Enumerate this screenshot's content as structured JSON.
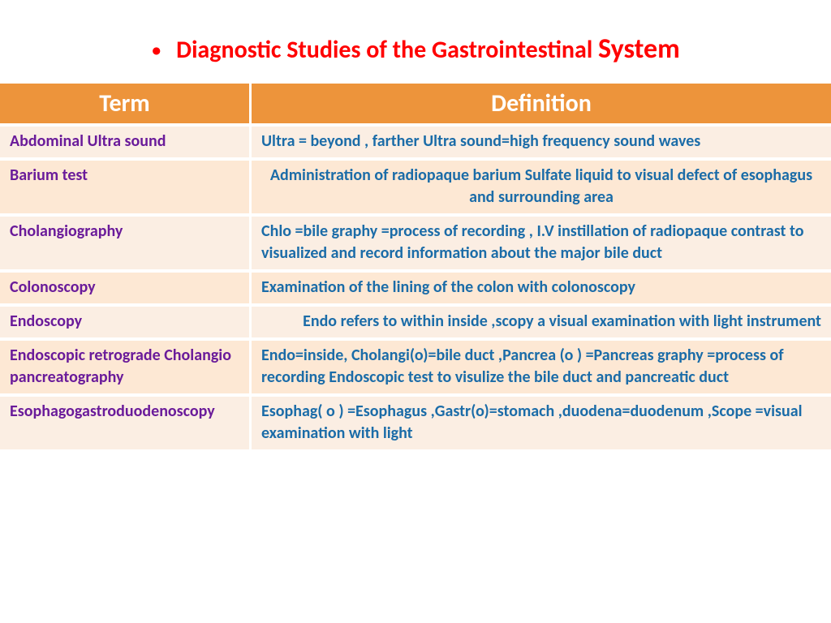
{
  "title_prefix": "Diagnostic Studies of the Gastrointestinal ",
  "title_big": "System",
  "headers": {
    "term": "Term",
    "definition": "Definition"
  },
  "rows": [
    {
      "term": "Abdominal Ultra sound",
      "def": "Ultra = beyond  , farther      Ultra sound=high frequency sound waves",
      "align": "left",
      "band": "odd"
    },
    {
      "term": "Barium test",
      "def": "Administration of  radiopaque barium  Sulfate liquid to visual defect of esophagus  and surrounding area",
      "align": "center",
      "band": "even"
    },
    {
      "term": "Cholangiography",
      "def": "Chlo =bile   graphy =process of recording   , I.V  instillation of radiopaque   contrast   to visualized  and record information about the major bile duct",
      "align": "left",
      "band": "odd"
    },
    {
      "term": "Colonoscopy",
      "def": "Examination of the  lining of the colon with colonoscopy",
      "align": "left",
      "band": "even"
    },
    {
      "term": "Endoscopy",
      "def": "Endo refers to within inside  ,scopy a visual examination with light\ninstrument",
      "align": "right",
      "band": "odd"
    },
    {
      "term": "Endoscopic retrograde Cholangio  pancreatography",
      "def": "Endo=inside, Cholangi(o)=bile duct ,Pancrea (o ) =Pancreas graphy =process of recording  Endoscopic test to visulize the bile duct and pancreatic duct",
      "align": "left",
      "band": "even"
    },
    {
      "term": "Esophagogastroduodenoscopy",
      "def": "Esophag( o ) =Esophagus ,Gastr(o)=stomach ,duodena=duodenum ,Scope =visual examination with light",
      "align": "left",
      "band": "odd"
    }
  ],
  "colors": {
    "title": "#ff0000",
    "header_bg": "#ed943b",
    "header_fg": "#ffffff",
    "term_fg": "#6a1b9a",
    "def_fg": "#1b6ca8",
    "row_odd": "#fbeee3",
    "row_even": "#fde8d4"
  }
}
